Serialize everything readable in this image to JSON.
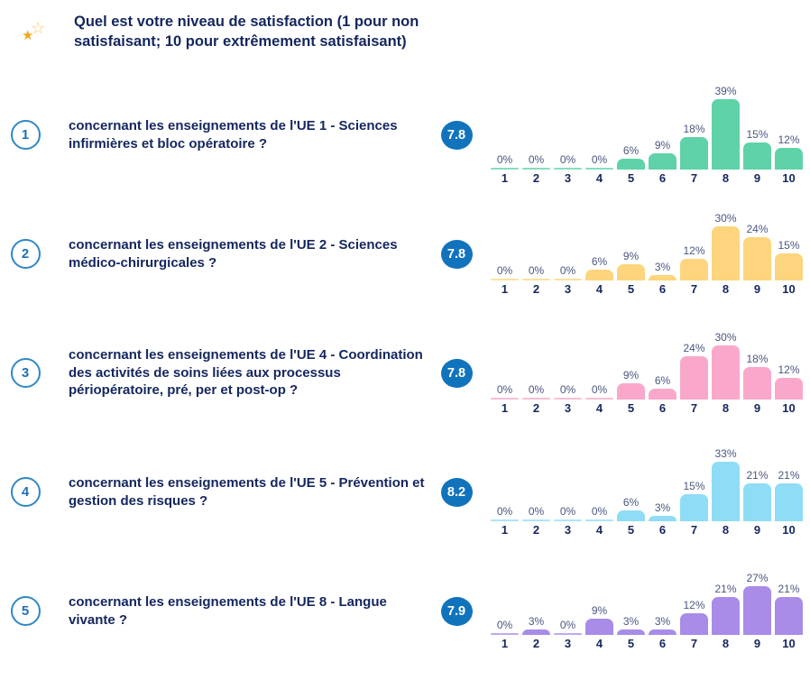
{
  "header": {
    "title": "Quel est votre niveau de satisfaction (1 pour non satisfaisant; 10 pour extrêmement satisfaisant)",
    "icon": "rating-stars"
  },
  "colors": {
    "title_text": "#14265e",
    "question_text": "#14265e",
    "score_badge_bg": "#1273bd",
    "score_badge_text": "#ffffff",
    "number_circle_border": "#2f87c8",
    "number_circle_text": "#1e70b8",
    "value_label_text": "#4a5680",
    "axis_label_text": "#14265e",
    "star_filled": "#f6a41f",
    "star_outline": "#f8c966"
  },
  "chart_data": [
    {
      "type": "bar",
      "number": "1",
      "question": "concernant les enseignements de l'UE 1 - Sciences infirmières et bloc opératoire ?",
      "score": "7.8",
      "categories": [
        "1",
        "2",
        "3",
        "4",
        "5",
        "6",
        "7",
        "8",
        "9",
        "10"
      ],
      "values": [
        0,
        0,
        0,
        0,
        6,
        9,
        18,
        39,
        15,
        12
      ],
      "value_labels": [
        "0%",
        "0%",
        "0%",
        "0%",
        "6%",
        "9%",
        "18%",
        "39%",
        "15%",
        "12%"
      ],
      "bar_color": "#5fd2a8",
      "ylim": [
        0,
        40
      ],
      "xlabel": "",
      "ylabel": ""
    },
    {
      "type": "bar",
      "number": "2",
      "question": "concernant les enseignements de l'UE 2 - Sciences médico-chirurgicales ?",
      "score": "7.8",
      "categories": [
        "1",
        "2",
        "3",
        "4",
        "5",
        "6",
        "7",
        "8",
        "9",
        "10"
      ],
      "values": [
        0,
        0,
        0,
        6,
        9,
        3,
        12,
        30,
        24,
        15
      ],
      "value_labels": [
        "0%",
        "0%",
        "0%",
        "6%",
        "9%",
        "3%",
        "12%",
        "30%",
        "24%",
        "15%"
      ],
      "bar_color": "#fcd57e",
      "ylim": [
        0,
        40
      ],
      "xlabel": "",
      "ylabel": ""
    },
    {
      "type": "bar",
      "number": "3",
      "question": "concernant les enseignements de l'UE 4 - Coordination des activités de soins liées aux processus périopératoire, pré, per et post-op ?",
      "score": "7.8",
      "categories": [
        "1",
        "2",
        "3",
        "4",
        "5",
        "6",
        "7",
        "8",
        "9",
        "10"
      ],
      "values": [
        0,
        0,
        0,
        0,
        9,
        6,
        24,
        30,
        18,
        12
      ],
      "value_labels": [
        "0%",
        "0%",
        "0%",
        "0%",
        "9%",
        "6%",
        "24%",
        "30%",
        "18%",
        "12%"
      ],
      "bar_color": "#f9a8cb",
      "ylim": [
        0,
        40
      ],
      "xlabel": "",
      "ylabel": ""
    },
    {
      "type": "bar",
      "number": "4",
      "question": "concernant les enseignements de l'UE 5 - Prévention et gestion des risques  ?",
      "score": "8.2",
      "categories": [
        "1",
        "2",
        "3",
        "4",
        "5",
        "6",
        "7",
        "8",
        "9",
        "10"
      ],
      "values": [
        0,
        0,
        0,
        0,
        6,
        3,
        15,
        33,
        21,
        21
      ],
      "value_labels": [
        "0%",
        "0%",
        "0%",
        "0%",
        "6%",
        "3%",
        "15%",
        "33%",
        "21%",
        "21%"
      ],
      "bar_color": "#8fdcf6",
      "ylim": [
        0,
        40
      ],
      "xlabel": "",
      "ylabel": ""
    },
    {
      "type": "bar",
      "number": "5",
      "question": "concernant les enseignements de l'UE 8 - Langue vivante  ?",
      "score": "7.9",
      "categories": [
        "1",
        "2",
        "3",
        "4",
        "5",
        "6",
        "7",
        "8",
        "9",
        "10"
      ],
      "values": [
        0,
        3,
        0,
        9,
        3,
        3,
        12,
        21,
        27,
        21
      ],
      "value_labels": [
        "0%",
        "3%",
        "0%",
        "9%",
        "3%",
        "3%",
        "12%",
        "21%",
        "27%",
        "21%"
      ],
      "bar_color": "#a88ce8",
      "ylim": [
        0,
        40
      ],
      "xlabel": "",
      "ylabel": ""
    }
  ]
}
